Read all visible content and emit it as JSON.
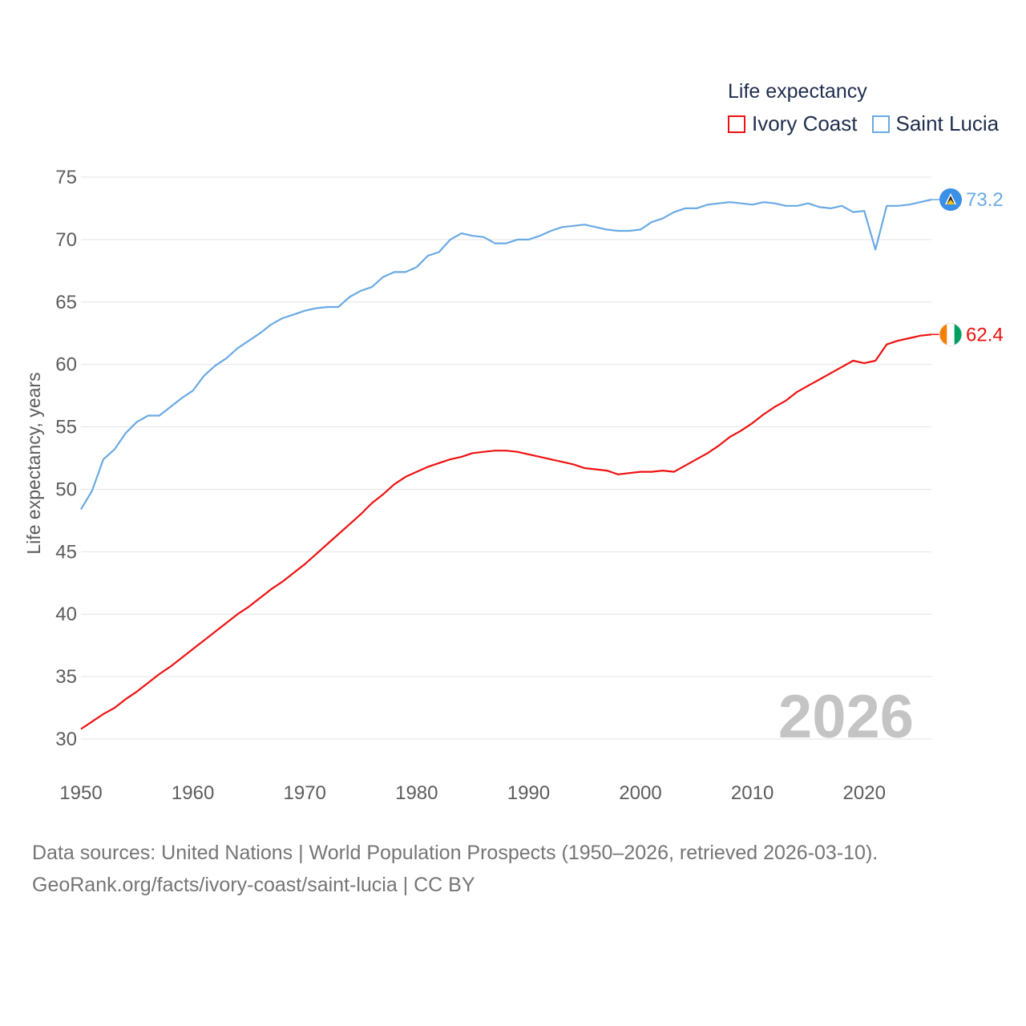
{
  "legend": {
    "title": "Life expectancy",
    "items": [
      {
        "name": "Ivory Coast",
        "color": "#ee1111"
      },
      {
        "name": "Saint Lucia",
        "color": "#6aaae4"
      }
    ]
  },
  "year_watermark": "2026",
  "footer": {
    "line1": "Data sources: United Nations | World Population Prospects (1950–2026, retrieved 2026-03-10).",
    "line2": "GeoRank.org/facts/ivory-coast/saint-lucia | CC BY"
  },
  "end_labels": {
    "saint_lucia": "73.2",
    "ivory_coast": "62.4"
  },
  "chart_data": {
    "type": "line",
    "title": "Life expectancy",
    "xlabel": "",
    "ylabel": "Life expectancy, years",
    "xlim": [
      1950,
      2026
    ],
    "ylim": [
      30,
      75
    ],
    "x_ticks": [
      1950,
      1960,
      1970,
      1980,
      1990,
      2000,
      2010,
      2020
    ],
    "y_ticks": [
      30,
      35,
      40,
      45,
      50,
      55,
      60,
      65,
      70,
      75
    ],
    "series": [
      {
        "name": "Saint Lucia",
        "color": "#6aaae4",
        "points": [
          [
            1950,
            48.4
          ],
          [
            1951,
            49.9
          ],
          [
            1952,
            52.4
          ],
          [
            1953,
            53.2
          ],
          [
            1954,
            54.5
          ],
          [
            1955,
            55.4
          ],
          [
            1956,
            55.9
          ],
          [
            1957,
            55.9
          ],
          [
            1958,
            56.6
          ],
          [
            1959,
            57.3
          ],
          [
            1960,
            57.9
          ],
          [
            1961,
            59.1
          ],
          [
            1962,
            59.9
          ],
          [
            1963,
            60.5
          ],
          [
            1964,
            61.3
          ],
          [
            1965,
            61.9
          ],
          [
            1966,
            62.5
          ],
          [
            1967,
            63.2
          ],
          [
            1968,
            63.7
          ],
          [
            1969,
            64.0
          ],
          [
            1970,
            64.3
          ],
          [
            1971,
            64.5
          ],
          [
            1972,
            64.6
          ],
          [
            1973,
            64.6
          ],
          [
            1974,
            65.4
          ],
          [
            1975,
            65.9
          ],
          [
            1976,
            66.2
          ],
          [
            1977,
            67.0
          ],
          [
            1978,
            67.4
          ],
          [
            1979,
            67.4
          ],
          [
            1980,
            67.8
          ],
          [
            1981,
            68.7
          ],
          [
            1982,
            69.0
          ],
          [
            1983,
            70.0
          ],
          [
            1984,
            70.5
          ],
          [
            1985,
            70.3
          ],
          [
            1986,
            70.2
          ],
          [
            1987,
            69.7
          ],
          [
            1988,
            69.7
          ],
          [
            1989,
            70.0
          ],
          [
            1990,
            70.0
          ],
          [
            1991,
            70.3
          ],
          [
            1992,
            70.7
          ],
          [
            1993,
            71.0
          ],
          [
            1994,
            71.1
          ],
          [
            1995,
            71.2
          ],
          [
            1996,
            71.0
          ],
          [
            1997,
            70.8
          ],
          [
            1998,
            70.7
          ],
          [
            1999,
            70.7
          ],
          [
            2000,
            70.8
          ],
          [
            2001,
            71.4
          ],
          [
            2002,
            71.7
          ],
          [
            2003,
            72.2
          ],
          [
            2004,
            72.5
          ],
          [
            2005,
            72.5
          ],
          [
            2006,
            72.8
          ],
          [
            2007,
            72.9
          ],
          [
            2008,
            73.0
          ],
          [
            2009,
            72.9
          ],
          [
            2010,
            72.8
          ],
          [
            2011,
            73.0
          ],
          [
            2012,
            72.9
          ],
          [
            2013,
            72.7
          ],
          [
            2014,
            72.7
          ],
          [
            2015,
            72.9
          ],
          [
            2016,
            72.6
          ],
          [
            2017,
            72.5
          ],
          [
            2018,
            72.7
          ],
          [
            2019,
            72.2
          ],
          [
            2020,
            72.3
          ],
          [
            2021,
            69.2
          ],
          [
            2022,
            72.7
          ],
          [
            2023,
            72.7
          ],
          [
            2024,
            72.8
          ],
          [
            2025,
            73.0
          ],
          [
            2026,
            73.2
          ]
        ]
      },
      {
        "name": "Ivory Coast",
        "color": "#ee1111",
        "points": [
          [
            1950,
            30.8
          ],
          [
            1951,
            31.4
          ],
          [
            1952,
            32.0
          ],
          [
            1953,
            32.5
          ],
          [
            1954,
            33.2
          ],
          [
            1955,
            33.8
          ],
          [
            1956,
            34.5
          ],
          [
            1957,
            35.2
          ],
          [
            1958,
            35.8
          ],
          [
            1959,
            36.5
          ],
          [
            1960,
            37.2
          ],
          [
            1961,
            37.9
          ],
          [
            1962,
            38.6
          ],
          [
            1963,
            39.3
          ],
          [
            1964,
            40.0
          ],
          [
            1965,
            40.6
          ],
          [
            1966,
            41.3
          ],
          [
            1967,
            42.0
          ],
          [
            1968,
            42.6
          ],
          [
            1969,
            43.3
          ],
          [
            1970,
            44.0
          ],
          [
            1971,
            44.8
          ],
          [
            1972,
            45.6
          ],
          [
            1973,
            46.4
          ],
          [
            1974,
            47.2
          ],
          [
            1975,
            48.0
          ],
          [
            1976,
            48.9
          ],
          [
            1977,
            49.6
          ],
          [
            1978,
            50.4
          ],
          [
            1979,
            51.0
          ],
          [
            1980,
            51.4
          ],
          [
            1981,
            51.8
          ],
          [
            1982,
            52.1
          ],
          [
            1983,
            52.4
          ],
          [
            1984,
            52.6
          ],
          [
            1985,
            52.9
          ],
          [
            1986,
            53.0
          ],
          [
            1987,
            53.1
          ],
          [
            1988,
            53.1
          ],
          [
            1989,
            53.0
          ],
          [
            1990,
            52.8
          ],
          [
            1991,
            52.6
          ],
          [
            1992,
            52.4
          ],
          [
            1993,
            52.2
          ],
          [
            1994,
            52.0
          ],
          [
            1995,
            51.7
          ],
          [
            1996,
            51.6
          ],
          [
            1997,
            51.5
          ],
          [
            1998,
            51.2
          ],
          [
            1999,
            51.3
          ],
          [
            2000,
            51.4
          ],
          [
            2001,
            51.4
          ],
          [
            2002,
            51.5
          ],
          [
            2003,
            51.4
          ],
          [
            2004,
            51.9
          ],
          [
            2005,
            52.4
          ],
          [
            2006,
            52.9
          ],
          [
            2007,
            53.5
          ],
          [
            2008,
            54.2
          ],
          [
            2009,
            54.7
          ],
          [
            2010,
            55.3
          ],
          [
            2011,
            56.0
          ],
          [
            2012,
            56.6
          ],
          [
            2013,
            57.1
          ],
          [
            2014,
            57.8
          ],
          [
            2015,
            58.3
          ],
          [
            2016,
            58.8
          ],
          [
            2017,
            59.3
          ],
          [
            2018,
            59.8
          ],
          [
            2019,
            60.3
          ],
          [
            2020,
            60.1
          ],
          [
            2021,
            60.3
          ],
          [
            2022,
            61.6
          ],
          [
            2023,
            61.9
          ],
          [
            2024,
            62.1
          ],
          [
            2025,
            62.3
          ],
          [
            2026,
            62.4
          ]
        ]
      }
    ]
  }
}
